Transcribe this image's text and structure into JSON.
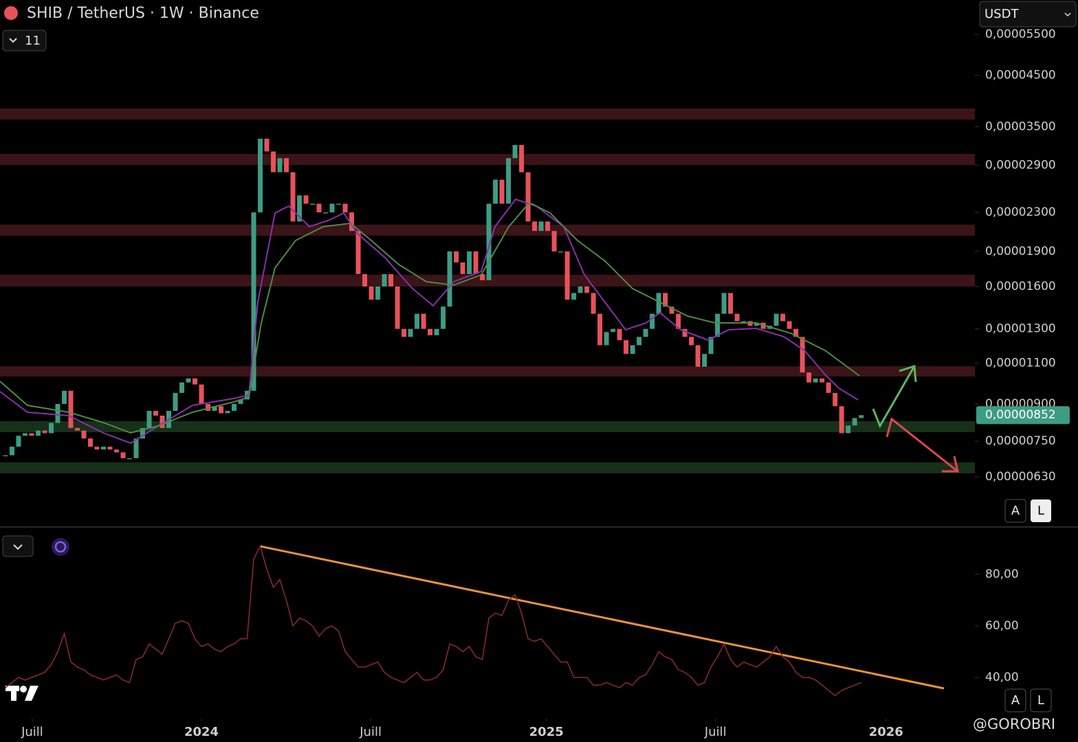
{
  "header": {
    "title": "SHIB / TetherUS · 1W · Binance",
    "indicator_count": "11",
    "currency": "USDT"
  },
  "chart_data": [
    {
      "type": "candlestick",
      "log_scale": true,
      "up_color": "#3d9c84",
      "down_color": "#e8525a",
      "values": [
        7e-06,
        7.3e-06,
        7.7e-06,
        7.8e-06,
        7.7e-06,
        7.9e-06,
        7.8e-06,
        8.2e-06,
        9e-06,
        9.6e-06,
        8e-06,
        7.9e-06,
        7.6e-06,
        7.3e-06,
        7.2e-06,
        7.3e-06,
        7.2e-06,
        7.1e-06,
        6.9e-06,
        6.9e-06,
        7.6e-06,
        8e-06,
        8.7e-06,
        8.5e-06,
        8e-06,
        8.7e-06,
        9.5e-06,
        1e-05,
        1.02e-05,
        9.9e-06,
        9e-06,
        8.7e-06,
        8.9e-06,
        8.6e-06,
        8.7e-06,
        9e-06,
        9.2e-06,
        9.6e-06,
        2.3e-05,
        3.3e-05,
        3.1e-05,
        2.8e-05,
        3e-05,
        2.8e-05,
        2.2e-05,
        2.5e-05,
        2.4e-05,
        2.4e-05,
        2.3e-05,
        2.3e-05,
        2.4e-05,
        2.4e-05,
        2.3e-05,
        2.1e-05,
        1.7e-05,
        1.6e-05,
        1.5e-05,
        1.6e-05,
        1.7e-05,
        1.6e-05,
        1.3e-05,
        1.25e-05,
        1.3e-05,
        1.4e-05,
        1.3e-05,
        1.26e-05,
        1.3e-05,
        1.45e-05,
        1.9e-05,
        1.8e-05,
        1.7e-05,
        1.9e-05,
        1.7e-05,
        1.65e-05,
        2.4e-05,
        2.7e-05,
        2.4e-05,
        3e-05,
        3.2e-05,
        2.8e-05,
        2.2e-05,
        2.1e-05,
        2.2e-05,
        2.1e-05,
        1.9e-05,
        1.9e-05,
        1.5e-05,
        1.55e-05,
        1.6e-05,
        1.55e-05,
        1.4e-05,
        1.2e-05,
        1.28e-05,
        1.3e-05,
        1.23e-05,
        1.15e-05,
        1.2e-05,
        1.25e-05,
        1.3e-05,
        1.4e-05,
        1.55e-05,
        1.45e-05,
        1.4e-05,
        1.3e-05,
        1.25e-05,
        1.2e-05,
        1.08e-05,
        1.15e-05,
        1.25e-05,
        1.4e-05,
        1.55e-05,
        1.4e-05,
        1.35e-05,
        1.35e-05,
        1.32e-05,
        1.34e-05,
        1.3e-05,
        1.32e-05,
        1.4e-05,
        1.35e-05,
        1.3e-05,
        1.25e-05,
        1.05e-05,
        1e-05,
        1.02e-05,
        1e-05,
        9.5e-06,
        8.9e-06,
        7.8e-06,
        8.1e-06,
        8.4e-06,
        8.52e-06
      ],
      "ylim": [
        4.96e-06,
        6.51e-05
      ],
      "yticks": [
        {
          "value": 5.5e-05,
          "label": "0,00005500"
        },
        {
          "value": 4.5e-05,
          "label": "0,00004500"
        },
        {
          "value": 3.5e-05,
          "label": "0,00003500"
        },
        {
          "value": 2.9e-05,
          "label": "0,00002900"
        },
        {
          "value": 2.3e-05,
          "label": "0,00002300"
        },
        {
          "value": 1.9e-05,
          "label": "0,00001900"
        },
        {
          "value": 1.6e-05,
          "label": "0,00001600"
        },
        {
          "value": 1.3e-05,
          "label": "0,00001300"
        },
        {
          "value": 1.1e-05,
          "label": "0,00001100"
        },
        {
          "value": 9e-06,
          "label": "0,00000900"
        },
        {
          "value": 7.5e-06,
          "label": "0,00000750"
        },
        {
          "value": 6.3e-06,
          "label": "0,00000630"
        }
      ],
      "last_price": {
        "value": 8.52e-06,
        "label": "0,00000852"
      },
      "xlim": [
        -0.84,
        148.4
      ],
      "xticks": [
        {
          "value": 4.1,
          "label": "Juill"
        },
        {
          "value": 30,
          "label": "2024"
        },
        {
          "value": 55.9,
          "label": "Juill"
        },
        {
          "value": 82.8,
          "label": "2025"
        },
        {
          "value": 108.7,
          "label": "Juill"
        },
        {
          "value": 134.8,
          "label": "2026"
        }
      ]
    },
    {
      "type": "line",
      "color": "#8e2b2b",
      "values": [
        36,
        38,
        40,
        39,
        40,
        41,
        42,
        45,
        50,
        57,
        46,
        44,
        43,
        41,
        40,
        39,
        40,
        41,
        39,
        38,
        47,
        48,
        53,
        51,
        49,
        55,
        61,
        62,
        61,
        55,
        52,
        53,
        51,
        50,
        52,
        53,
        55,
        55,
        86,
        91,
        82,
        75,
        78,
        70,
        60,
        63,
        62,
        60,
        56,
        59,
        60,
        58,
        50,
        47,
        44,
        44,
        45,
        46,
        42,
        40,
        39,
        38,
        40,
        42,
        39,
        39,
        40,
        43,
        53,
        52,
        50,
        52,
        48,
        47,
        63,
        65,
        64,
        70,
        72,
        65,
        55,
        54,
        55,
        52,
        49,
        46,
        46,
        40,
        40,
        40,
        37,
        37,
        38,
        37,
        36,
        38,
        37,
        40,
        41,
        45,
        50,
        48,
        47,
        43,
        42,
        40,
        37,
        38,
        44,
        48,
        53,
        47,
        44,
        46,
        45,
        44,
        46,
        48,
        52,
        48,
        46,
        42,
        40,
        40,
        39,
        37,
        35,
        33,
        35,
        36,
        37,
        38
      ],
      "ylim": [
        25.6,
        97.6
      ],
      "yticks": [
        {
          "value": 80,
          "label": "80,00"
        },
        {
          "value": 60,
          "label": "60,00"
        },
        {
          "value": 40,
          "label": "40,00"
        }
      ]
    }
  ],
  "scale_buttons": [
    "A",
    "L"
  ],
  "watermark": "@GOROBRI"
}
